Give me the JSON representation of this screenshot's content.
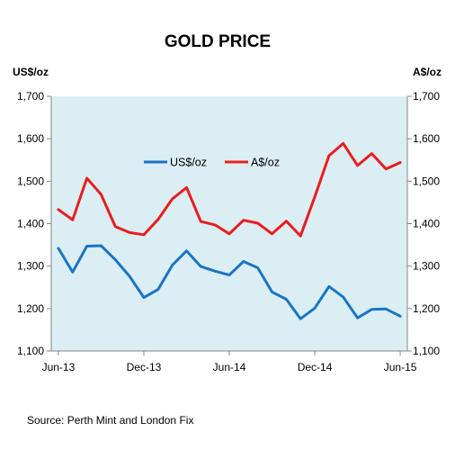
{
  "chart_data": {
    "type": "line",
    "title": "GOLD PRICE",
    "left_axis_unit": "US$/oz",
    "right_axis_unit": "A$/oz",
    "x_tick_labels": [
      "Jun-13",
      "Dec-13",
      "Jun-14",
      "Dec-14",
      "Jun-15"
    ],
    "x_tick_index": [
      0,
      6,
      12,
      18,
      24
    ],
    "ylim": [
      1100,
      1700
    ],
    "y_ticks": [
      1100,
      1200,
      1300,
      1400,
      1500,
      1600,
      1700
    ],
    "y_tick_labels": [
      "1,100",
      "1,200",
      "1,300",
      "1,400",
      "1,500",
      "1,600",
      "1,700"
    ],
    "legend_position": "upper-center",
    "grid": false,
    "plot_background": "#dbeef4",
    "series": [
      {
        "name": "US$/oz",
        "color": "#1a75c4",
        "values": [
          1342,
          1286,
          1347,
          1348,
          1315,
          1276,
          1226,
          1245,
          1302,
          1336,
          1299,
          1288,
          1279,
          1311,
          1296,
          1239,
          1222,
          1176,
          1201,
          1252,
          1227,
          1178,
          1198,
          1199,
          1182
        ]
      },
      {
        "name": "A$/oz",
        "color": "#e81e1e",
        "values": [
          1433,
          1409,
          1507,
          1469,
          1393,
          1379,
          1374,
          1410,
          1458,
          1485,
          1405,
          1397,
          1376,
          1408,
          1401,
          1376,
          1406,
          1371,
          1463,
          1560,
          1589,
          1537,
          1565,
          1529,
          1544
        ]
      }
    ]
  },
  "source": "Source:  Perth Mint and London Fix"
}
